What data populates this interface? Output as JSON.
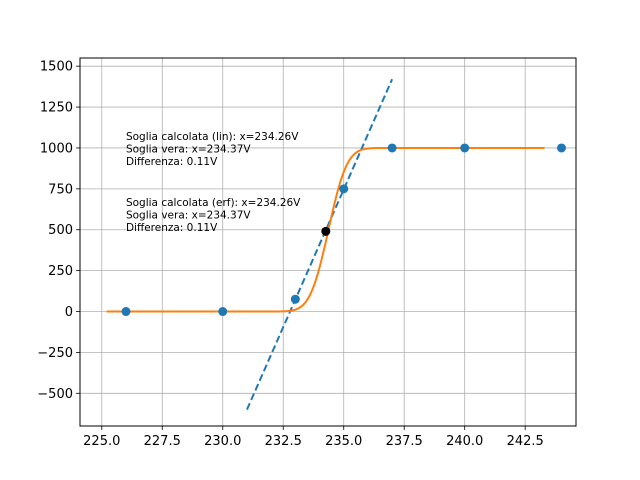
{
  "chart_data": {
    "type": "scatter",
    "title": "",
    "xlabel": "",
    "ylabel": "",
    "xlim": [
      224.1,
      244.6
    ],
    "ylim": [
      -700,
      1550
    ],
    "grid": true,
    "x_ticks": [
      225.0,
      227.5,
      230.0,
      232.5,
      235.0,
      237.5,
      240.0,
      242.5
    ],
    "x_tick_labels": [
      "225.0",
      "227.5",
      "230.0",
      "232.5",
      "235.0",
      "237.5",
      "240.0",
      "242.5"
    ],
    "y_ticks": [
      -500,
      -250,
      0,
      250,
      500,
      750,
      1000,
      1250,
      1500
    ],
    "y_tick_labels": [
      "−500",
      "−250",
      "0",
      "250",
      "500",
      "750",
      "1000",
      "1250",
      "1500"
    ],
    "series": [
      {
        "kind": "scatter",
        "color": "#1f77b4",
        "points": [
          [
            226,
            0
          ],
          [
            230,
            0
          ],
          [
            233,
            75
          ],
          [
            235,
            750
          ],
          [
            237,
            1000
          ],
          [
            240,
            1000
          ],
          [
            244,
            1000
          ]
        ]
      },
      {
        "kind": "scatter",
        "color": "#000000",
        "points": [
          [
            234.26,
            490
          ]
        ]
      },
      {
        "kind": "line",
        "style": "dashed",
        "color": "#1f77b4",
        "points": [
          [
            231.0,
            -600
          ],
          [
            237.0,
            1420
          ]
        ]
      },
      {
        "kind": "curve",
        "function": "erf",
        "color": "#ff7f0e",
        "amplitude": 1000,
        "center": 234.37,
        "width": 0.85,
        "x_range": [
          225.2,
          243.3
        ]
      }
    ],
    "annotations": [
      {
        "lines": [
          "Soglia calcolata (lin): x=234.26V",
          "Soglia vera: x=234.37V",
          "Differenza: 0.11V"
        ],
        "x": 226.0,
        "y": 1050
      },
      {
        "lines": [
          "Soglia calcolata (erf): x=234.26V",
          "Soglia vera: x=234.37V",
          "Differenza: 0.11V"
        ],
        "x": 226.0,
        "y": 645
      }
    ]
  }
}
